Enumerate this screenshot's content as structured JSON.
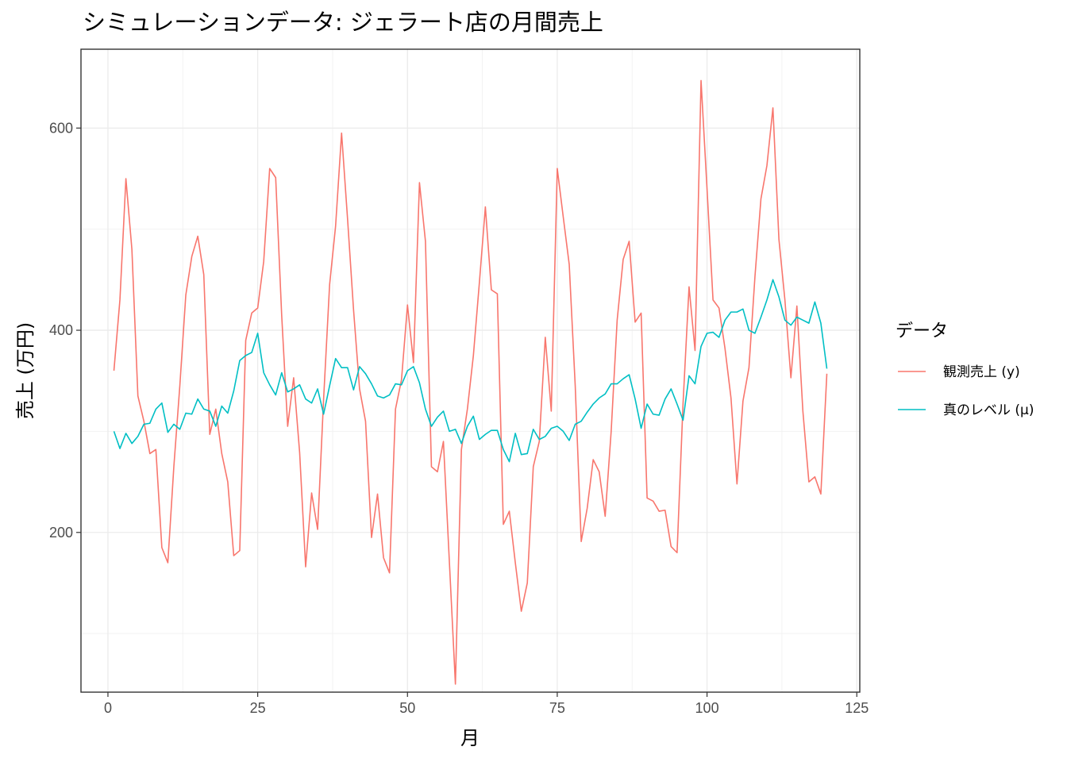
{
  "chart_data": {
    "type": "line",
    "title": "シミュレーションデータ: ジェラート店の月間売上",
    "xlabel": "月",
    "ylabel": "売上 (万円)",
    "xlim": [
      -4.5,
      125.5
    ],
    "ylim": [
      42,
      678
    ],
    "x_ticks": [
      0,
      25,
      50,
      75,
      100,
      125
    ],
    "y_ticks": [
      200,
      400,
      600
    ],
    "x_tick_labels": [
      "0",
      "25",
      "50",
      "75",
      "100",
      "125"
    ],
    "y_tick_labels": [
      "200",
      "400",
      "600"
    ],
    "grid": true,
    "legend": {
      "title": "データ",
      "position": "right"
    },
    "series": [
      {
        "name": "観測売上 (y)",
        "color": "#F8766D",
        "x": [
          1,
          2,
          3,
          4,
          5,
          6,
          7,
          8,
          9,
          10,
          11,
          12,
          13,
          14,
          15,
          16,
          17,
          18,
          19,
          20,
          21,
          22,
          23,
          24,
          25,
          26,
          27,
          28,
          29,
          30,
          31,
          32,
          33,
          34,
          35,
          36,
          37,
          38,
          39,
          40,
          41,
          42,
          43,
          44,
          45,
          46,
          47,
          48,
          49,
          50,
          51,
          52,
          53,
          54,
          55,
          56,
          57,
          58,
          59,
          60,
          61,
          62,
          63,
          64,
          65,
          66,
          67,
          68,
          69,
          70,
          71,
          72,
          73,
          74,
          75,
          76,
          77,
          78,
          79,
          80,
          81,
          82,
          83,
          84,
          85,
          86,
          87,
          88,
          89,
          90,
          91,
          92,
          93,
          94,
          95,
          96,
          97,
          98,
          99,
          100,
          101,
          102,
          103,
          104,
          105,
          106,
          107,
          108,
          109,
          110,
          111,
          112,
          113,
          114,
          115,
          116,
          117,
          118,
          119,
          120
        ],
        "values": [
          360,
          430,
          550,
          480,
          335,
          310,
          278,
          282,
          185,
          170,
          265,
          345,
          435,
          473,
          493,
          455,
          297,
          322,
          278,
          250,
          177,
          182,
          390,
          417,
          422,
          468,
          560,
          551,
          415,
          305,
          353,
          279,
          166,
          239,
          203,
          332,
          445,
          503,
          595,
          510,
          420,
          342,
          310,
          195,
          238,
          175,
          160,
          322,
          351,
          425,
          368,
          546,
          488,
          265,
          260,
          290,
          170,
          50,
          282,
          322,
          375,
          447,
          522,
          440,
          436,
          208,
          221,
          170,
          122,
          150,
          265,
          290,
          393,
          320,
          560,
          512,
          465,
          345,
          191,
          224,
          272,
          260,
          216,
          300,
          410,
          470,
          488,
          408,
          417,
          234,
          231,
          221,
          222,
          186,
          180,
          328,
          443,
          380,
          647,
          540,
          430,
          422,
          382,
          333,
          248,
          330,
          363,
          453,
          530,
          563,
          620,
          490,
          430,
          353,
          424,
          320,
          250,
          255,
          238,
          357
        ]
      },
      {
        "name": "真のレベル (μ)",
        "color": "#00BFC4",
        "x": [
          1,
          2,
          3,
          4,
          5,
          6,
          7,
          8,
          9,
          10,
          11,
          12,
          13,
          14,
          15,
          16,
          17,
          18,
          19,
          20,
          21,
          22,
          23,
          24,
          25,
          26,
          27,
          28,
          29,
          30,
          31,
          32,
          33,
          34,
          35,
          36,
          37,
          38,
          39,
          40,
          41,
          42,
          43,
          44,
          45,
          46,
          47,
          48,
          49,
          50,
          51,
          52,
          53,
          54,
          55,
          56,
          57,
          58,
          59,
          60,
          61,
          62,
          63,
          64,
          65,
          66,
          67,
          68,
          69,
          70,
          71,
          72,
          73,
          74,
          75,
          76,
          77,
          78,
          79,
          80,
          81,
          82,
          83,
          84,
          85,
          86,
          87,
          88,
          89,
          90,
          91,
          92,
          93,
          94,
          95,
          96,
          97,
          98,
          99,
          100,
          101,
          102,
          103,
          104,
          105,
          106,
          107,
          108,
          109,
          110,
          111,
          112,
          113,
          114,
          115,
          116,
          117,
          118,
          119,
          120
        ],
        "values": [
          300,
          283,
          298,
          288,
          295,
          307,
          308,
          322,
          328,
          299,
          307,
          302,
          318,
          317,
          332,
          322,
          320,
          305,
          325,
          318,
          340,
          370,
          375,
          378,
          397,
          358,
          346,
          336,
          358,
          339,
          342,
          346,
          332,
          328,
          342,
          317,
          345,
          372,
          363,
          363,
          341,
          364,
          357,
          347,
          335,
          333,
          336,
          347,
          346,
          360,
          364,
          348,
          322,
          305,
          314,
          320,
          300,
          302,
          288,
          305,
          315,
          292,
          297,
          301,
          301,
          282,
          270,
          298,
          277,
          278,
          302,
          292,
          295,
          303,
          305,
          300,
          291,
          307,
          310,
          319,
          327,
          333,
          337,
          347,
          347,
          352,
          356,
          332,
          303,
          327,
          317,
          316,
          332,
          342,
          327,
          311,
          355,
          347,
          384,
          397,
          398,
          393,
          410,
          418,
          418,
          421,
          400,
          397,
          413,
          430,
          450,
          433,
          410,
          405,
          413,
          410,
          407,
          428,
          407,
          362
        ]
      }
    ]
  }
}
